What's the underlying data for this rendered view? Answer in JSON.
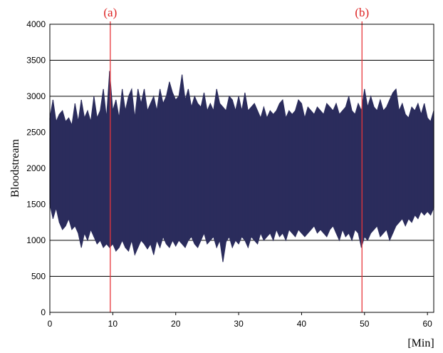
{
  "chart_data": {
    "type": "line",
    "title": "",
    "xlabel": "[Min]",
    "ylabel": "Bloodstream",
    "xlim": [
      0,
      61
    ],
    "ylim": [
      0,
      4000
    ],
    "xticks": [
      0,
      10,
      20,
      30,
      40,
      50,
      60
    ],
    "yticks": [
      0,
      500,
      1000,
      1500,
      2000,
      2500,
      3000,
      3500,
      4000
    ],
    "grid": "horizontal",
    "colors": {
      "series": "#2b2c5c",
      "markers": "#e8353a",
      "grid": "#000000"
    },
    "series": [
      {
        "values_description_free": true,
        "mean": 2050,
        "x": [
          0,
          0.5,
          1,
          1.5,
          2,
          2.5,
          3,
          3.5,
          4,
          4.5,
          5,
          5.5,
          6,
          6.5,
          7,
          7.5,
          8,
          8.5,
          9,
          9.5,
          10,
          10.5,
          11,
          11.5,
          12,
          12.5,
          13,
          13.5,
          14,
          14.5,
          15,
          15.5,
          16,
          16.5,
          17,
          17.5,
          18,
          18.5,
          19,
          19.5,
          20,
          20.5,
          21,
          21.5,
          22,
          22.5,
          23,
          23.5,
          24,
          24.5,
          25,
          25.5,
          26,
          26.5,
          27,
          27.5,
          28,
          28.5,
          29,
          29.5,
          30,
          30.5,
          31,
          31.5,
          32,
          32.5,
          33,
          33.5,
          34,
          34.5,
          35,
          35.5,
          36,
          36.5,
          37,
          37.5,
          38,
          38.5,
          39,
          39.5,
          40,
          40.5,
          41,
          41.5,
          42,
          42.5,
          43,
          43.5,
          44,
          44.5,
          45,
          45.5,
          46,
          46.5,
          47,
          47.5,
          48,
          48.5,
          49,
          49.5,
          50,
          50.5,
          51,
          51.5,
          52,
          52.5,
          53,
          53.5,
          54,
          54.5,
          55,
          55.5,
          56,
          56.5,
          57,
          57.5,
          58,
          58.5,
          59,
          59.5,
          60,
          60.5,
          61
        ],
        "upper": [
          2700,
          2950,
          2650,
          2750,
          2800,
          2650,
          2700,
          2600,
          2900,
          2650,
          2950,
          2700,
          2800,
          2650,
          3000,
          2700,
          2800,
          3100,
          2700,
          3350,
          2800,
          2950,
          2700,
          3100,
          2800,
          3000,
          3100,
          2700,
          3100,
          2900,
          3100,
          2800,
          2900,
          3000,
          2800,
          3100,
          2900,
          3000,
          3200,
          3050,
          2950,
          3000,
          3300,
          2950,
          3100,
          2850,
          3000,
          2900,
          2850,
          3050,
          2800,
          2900,
          2800,
          3100,
          2900,
          2850,
          2800,
          3000,
          2950,
          2800,
          3000,
          2800,
          3050,
          2800,
          2850,
          2900,
          2800,
          2700,
          2850,
          2700,
          2800,
          2750,
          2800,
          2900,
          2950,
          2700,
          2800,
          2750,
          2800,
          2950,
          2900,
          2700,
          2850,
          2800,
          2750,
          2850,
          2800,
          2750,
          2900,
          2850,
          2800,
          2900,
          2750,
          2800,
          2850,
          3000,
          2800,
          2750,
          2900,
          2800,
          3100,
          2850,
          3000,
          2850,
          2800,
          2950,
          2800,
          2850,
          2950,
          3050,
          3100,
          2800,
          2900,
          2750,
          2700,
          2850,
          2800,
          2900,
          2750,
          2900,
          2700,
          2650,
          2800
        ],
        "lower": [
          1500,
          1300,
          1450,
          1250,
          1150,
          1200,
          1300,
          1150,
          1200,
          1100,
          900,
          1100,
          1000,
          1150,
          1050,
          950,
          1000,
          900,
          950,
          900,
          950,
          850,
          900,
          1000,
          900,
          850,
          1000,
          800,
          900,
          1000,
          950,
          880,
          950,
          800,
          1000,
          900,
          1050,
          950,
          900,
          1000,
          920,
          1000,
          950,
          900,
          1000,
          1050,
          950,
          900,
          1000,
          1100,
          950,
          1000,
          1050,
          900,
          1000,
          700,
          980,
          1050,
          900,
          1000,
          950,
          1050,
          1000,
          900,
          1050,
          1000,
          950,
          1100,
          1000,
          1050,
          1100,
          1000,
          1150,
          1050,
          1100,
          1000,
          1150,
          1100,
          1050,
          1150,
          1100,
          1050,
          1100,
          1150,
          1200,
          1100,
          1150,
          1100,
          1050,
          1150,
          1200,
          1100,
          1000,
          1150,
          1050,
          1100,
          1000,
          1150,
          1100,
          900,
          1050,
          1000,
          1100,
          1150,
          1200,
          1050,
          1100,
          1150,
          1000,
          1100,
          1200,
          1250,
          1300,
          1200,
          1300,
          1250,
          1350,
          1300,
          1400,
          1350,
          1400,
          1350,
          1450
        ]
      }
    ],
    "annotations": [
      {
        "x": 9.6,
        "label": "(a)"
      },
      {
        "x": 49.6,
        "label": "(b)"
      }
    ]
  }
}
